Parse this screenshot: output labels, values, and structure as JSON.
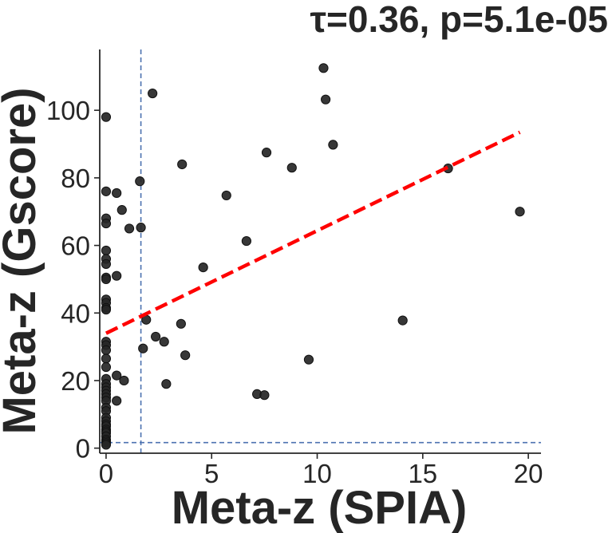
{
  "chart_data": {
    "type": "scatter",
    "title": "τ=0.36, p=5.1e-05",
    "xlabel": "Meta-z (SPIA)",
    "ylabel": "Meta-z (Gscore)",
    "xlim": [
      -0.3,
      20.6
    ],
    "ylim": [
      -1.5,
      118
    ],
    "xticks": [
      0,
      5,
      10,
      15,
      20
    ],
    "yticks": [
      0,
      20,
      40,
      60,
      80,
      100
    ],
    "grid": false,
    "reference_lines": {
      "vertical_x": 1.65,
      "horizontal_y": 1.65
    },
    "regression_line": {
      "x": [
        0,
        19.6
      ],
      "y": [
        34,
        93.5
      ]
    },
    "colors": {
      "points": "#262626",
      "fit_line": "#ff0000",
      "reference_lines": "#4c72b0"
    },
    "points": {
      "x": [
        0,
        0,
        0,
        0,
        0,
        0,
        0,
        0,
        0,
        0,
        0,
        0,
        0,
        0,
        0,
        0,
        0,
        0,
        0,
        0,
        0,
        0,
        0,
        0,
        0,
        0,
        0,
        0,
        0,
        0,
        0,
        0,
        0,
        0,
        0,
        0,
        0,
        0,
        0,
        0.5,
        0.5,
        0.5,
        0.5,
        0.75,
        0.85,
        1.1,
        1.6,
        1.65,
        1.75,
        1.9,
        2.2,
        2.35,
        2.75,
        2.85,
        3.55,
        3.6,
        3.75,
        4.6,
        5.7,
        6.65,
        7.15,
        7.5,
        7.6,
        8.8,
        9.6,
        10.3,
        10.4,
        10.75,
        14.05,
        16.2,
        19.6
      ],
      "y": [
        98,
        76,
        68,
        66.5,
        58.5,
        56,
        54.5,
        50.5,
        50,
        44,
        43,
        41.5,
        41,
        31.5,
        30.5,
        29,
        26.5,
        24,
        20.5,
        19,
        18,
        17,
        16,
        15,
        14,
        12,
        11,
        9,
        8,
        7,
        6.5,
        5.5,
        5,
        4.5,
        3.5,
        2.5,
        2,
        1.5,
        1,
        75.5,
        51,
        21.5,
        14,
        70.5,
        20,
        65,
        79,
        65.3,
        29.5,
        38,
        105,
        33,
        31.5,
        19,
        36.8,
        84,
        27.5,
        53.5,
        74.8,
        61.3,
        16,
        15.7,
        87.5,
        83,
        26.2,
        112.5,
        103.2,
        89.8,
        37.8,
        82.8,
        70
      ]
    }
  }
}
